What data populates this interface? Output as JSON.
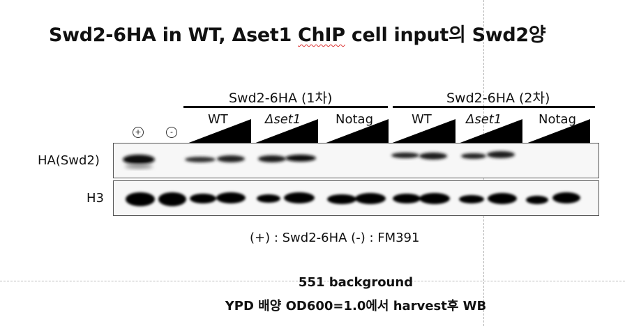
{
  "title": {
    "prefix": "Swd2-6HA in WT, Δset1 ",
    "underlined": "ChIP",
    "suffix": " cell input의 Swd2양"
  },
  "groups": [
    {
      "label": "Swd2-6HA (1차)",
      "lanes": [
        {
          "label": "WT",
          "italic": false
        },
        {
          "label": "Δset1",
          "italic": true
        },
        {
          "label": "Notag",
          "italic": false
        }
      ]
    },
    {
      "label": "Swd2-6HA (2차)",
      "lanes": [
        {
          "label": "WT",
          "italic": false
        },
        {
          "label": "Δset1",
          "italic": true
        },
        {
          "label": "Notag",
          "italic": false
        }
      ]
    }
  ],
  "controls": {
    "plus": "+",
    "minus": "-"
  },
  "blots": {
    "ha": "HA(Swd2)",
    "h3": "H3"
  },
  "legend": "(+) : Swd2-6HA (-) : FM391",
  "footer": {
    "line1": "551 background",
    "line2": "YPD 배양 OD600=1.0에서 harvest후 WB"
  }
}
